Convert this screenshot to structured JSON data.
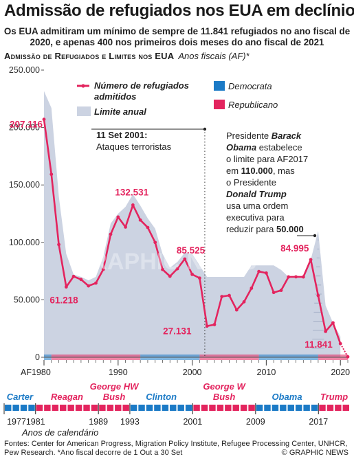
{
  "title": "Admissão de refugiados nos EUA em declínio",
  "subtitle": "Os EUA admitiram um mínimo de sempre de 11.841 refugiados no ano fiscal de 2020, e apenas 400 nos primeiros dois meses do ano fiscal de 2021",
  "section": {
    "heading": "Admissão de Refugiados e Limites nos EUA",
    "note": "Anos fiscais (AF)*"
  },
  "legend": {
    "admitted": "Número de refugiados admitidos",
    "limit": "Limite anual",
    "democrat": "Democrata",
    "republican": "Republicano"
  },
  "annotations": {
    "sept11_title": "11 Set 2001:",
    "sept11_text": "Ataques terroristas",
    "obama_line1_pre": "Presidente ",
    "obama_line1_name": "Barack",
    "obama_line2_name": "Obama",
    "obama_line2_post": " estabelece",
    "obama_line3": "o limite para AF2017",
    "obama_line4_pre": "em ",
    "obama_line4_val": "110.000",
    "obama_line4_post": ", mas",
    "obama_line5": "o Presidente",
    "obama_line6_name": "Donald Trump",
    "obama_line7": "usa uma ordem",
    "obama_line8": "executiva para",
    "obama_line9_pre": "reduzir para ",
    "obama_line9_val": "50.000"
  },
  "watermark": {
    "logo": "GN",
    "text": "GRAPHIC NEWS"
  },
  "chart_data": {
    "type": "line",
    "x_label_first": "AF1980",
    "xlim": [
      1980,
      2021
    ],
    "ylim": [
      0,
      250000
    ],
    "y_ticks": [
      0,
      50000,
      100000,
      150000,
      200000,
      250000
    ],
    "y_tick_labels": [
      "0",
      "50.000",
      "100.000",
      "150.000",
      "200.000",
      "250.000"
    ],
    "x_ticks": [
      1980,
      1990,
      2000,
      2010,
      2020
    ],
    "x_tick_labels": [
      "AF1980",
      "1990",
      "2000",
      "2010",
      "2020"
    ],
    "grid": false,
    "series": [
      {
        "name": "Número de refugiados admitidos",
        "color": "#e3245e",
        "x": [
          1980,
          1981,
          1982,
          1983,
          1984,
          1985,
          1986,
          1987,
          1988,
          1989,
          1990,
          1991,
          1992,
          1993,
          1994,
          1995,
          1996,
          1997,
          1998,
          1999,
          2000,
          2001,
          2002,
          2003,
          2004,
          2005,
          2006,
          2007,
          2008,
          2009,
          2010,
          2011,
          2012,
          2013,
          2014,
          2015,
          2016,
          2017,
          2018,
          2019,
          2020,
          2021
        ],
        "y": [
          207116,
          159252,
          98096,
          61218,
          70393,
          67704,
          62146,
          64528,
          76483,
          107070,
          122066,
          113389,
          132531,
          119448,
          112981,
          99974,
          76403,
          70488,
          77080,
          85525,
          72143,
          68925,
          27131,
          28422,
          52868,
          53813,
          41223,
          48282,
          60108,
          74652,
          73311,
          56384,
          58238,
          69926,
          69987,
          69933,
          84995,
          53716,
          22491,
          30000,
          11841,
          400
        ]
      },
      {
        "name": "Limite anual",
        "color": "#ccd3e2",
        "x": [
          1980,
          1981,
          1982,
          1983,
          1984,
          1985,
          1986,
          1987,
          1988,
          1989,
          1990,
          1991,
          1992,
          1993,
          1994,
          1995,
          1996,
          1997,
          1998,
          1999,
          2000,
          2001,
          2002,
          2003,
          2004,
          2005,
          2006,
          2007,
          2008,
          2009,
          2010,
          2011,
          2012,
          2013,
          2014,
          2015,
          2016,
          2017,
          2018,
          2019,
          2020
        ],
        "y": [
          231700,
          217000,
          140000,
          90000,
          72000,
          70000,
          67000,
          70000,
          87500,
          116500,
          125000,
          131000,
          142000,
          132000,
          121000,
          112000,
          90000,
          78000,
          83000,
          91000,
          90000,
          80000,
          70000,
          70000,
          70000,
          70000,
          70000,
          70000,
          80000,
          80000,
          80000,
          80000,
          76000,
          70000,
          70000,
          70000,
          85000,
          110000,
          45000,
          30000,
          18000
        ]
      }
    ],
    "data_labels": [
      {
        "x": 1980,
        "y": 207116,
        "label": "207.116"
      },
      {
        "x": 1983,
        "y": 61218,
        "label": "61.218"
      },
      {
        "x": 1992,
        "y": 132531,
        "label": "132.531"
      },
      {
        "x": 1999,
        "y": 85525,
        "label": "85.525"
      },
      {
        "x": 2002,
        "y": 27131,
        "label": "27.131"
      },
      {
        "x": 2016,
        "y": 84995,
        "label": "84.995"
      },
      {
        "x": 2020,
        "y": 11841,
        "label": "11.841"
      }
    ],
    "party_bands": [
      {
        "from": 1980,
        "to": 1981,
        "party": "democrat"
      },
      {
        "from": 1981,
        "to": 1993,
        "party": "republican"
      },
      {
        "from": 1993,
        "to": 2001,
        "party": "democrat"
      },
      {
        "from": 2001,
        "to": 2009,
        "party": "republican"
      },
      {
        "from": 2009,
        "to": 2017,
        "party": "democrat"
      },
      {
        "from": 2017,
        "to": 2021,
        "party": "republican"
      }
    ],
    "party_colors": {
      "democrat": "#1b7ac6",
      "republican": "#e3245e"
    },
    "presidents": [
      {
        "name": "Carter",
        "from": 1977,
        "to": 1981,
        "party": "democrat"
      },
      {
        "name": "Reagan",
        "from": 1981,
        "to": 1989,
        "party": "republican"
      },
      {
        "name": "George HW Bush",
        "from": 1989,
        "to": 1993,
        "party": "republican"
      },
      {
        "name": "Clinton",
        "from": 1993,
        "to": 2001,
        "party": "democrat"
      },
      {
        "name": "George W Bush",
        "from": 2001,
        "to": 2009,
        "party": "republican"
      },
      {
        "name": "Obama",
        "from": 2009,
        "to": 2017,
        "party": "democrat"
      },
      {
        "name": "Trump",
        "from": 2017,
        "to": 2021,
        "party": "republican"
      }
    ],
    "calendar_ticks": [
      "1977",
      "1981",
      "1989",
      "1993",
      "2001",
      "2009",
      "2017"
    ],
    "calendar_label": "Anos de calendário"
  },
  "footer": {
    "sources": "Fontes: Center for American Progress, Migration Policy Institute, Refugee Processing Center, UNHCR, Pew Research. *Ano fiscal decorre de 1 Out a 30 Set",
    "credit": "© GRAPHIC NEWS"
  }
}
